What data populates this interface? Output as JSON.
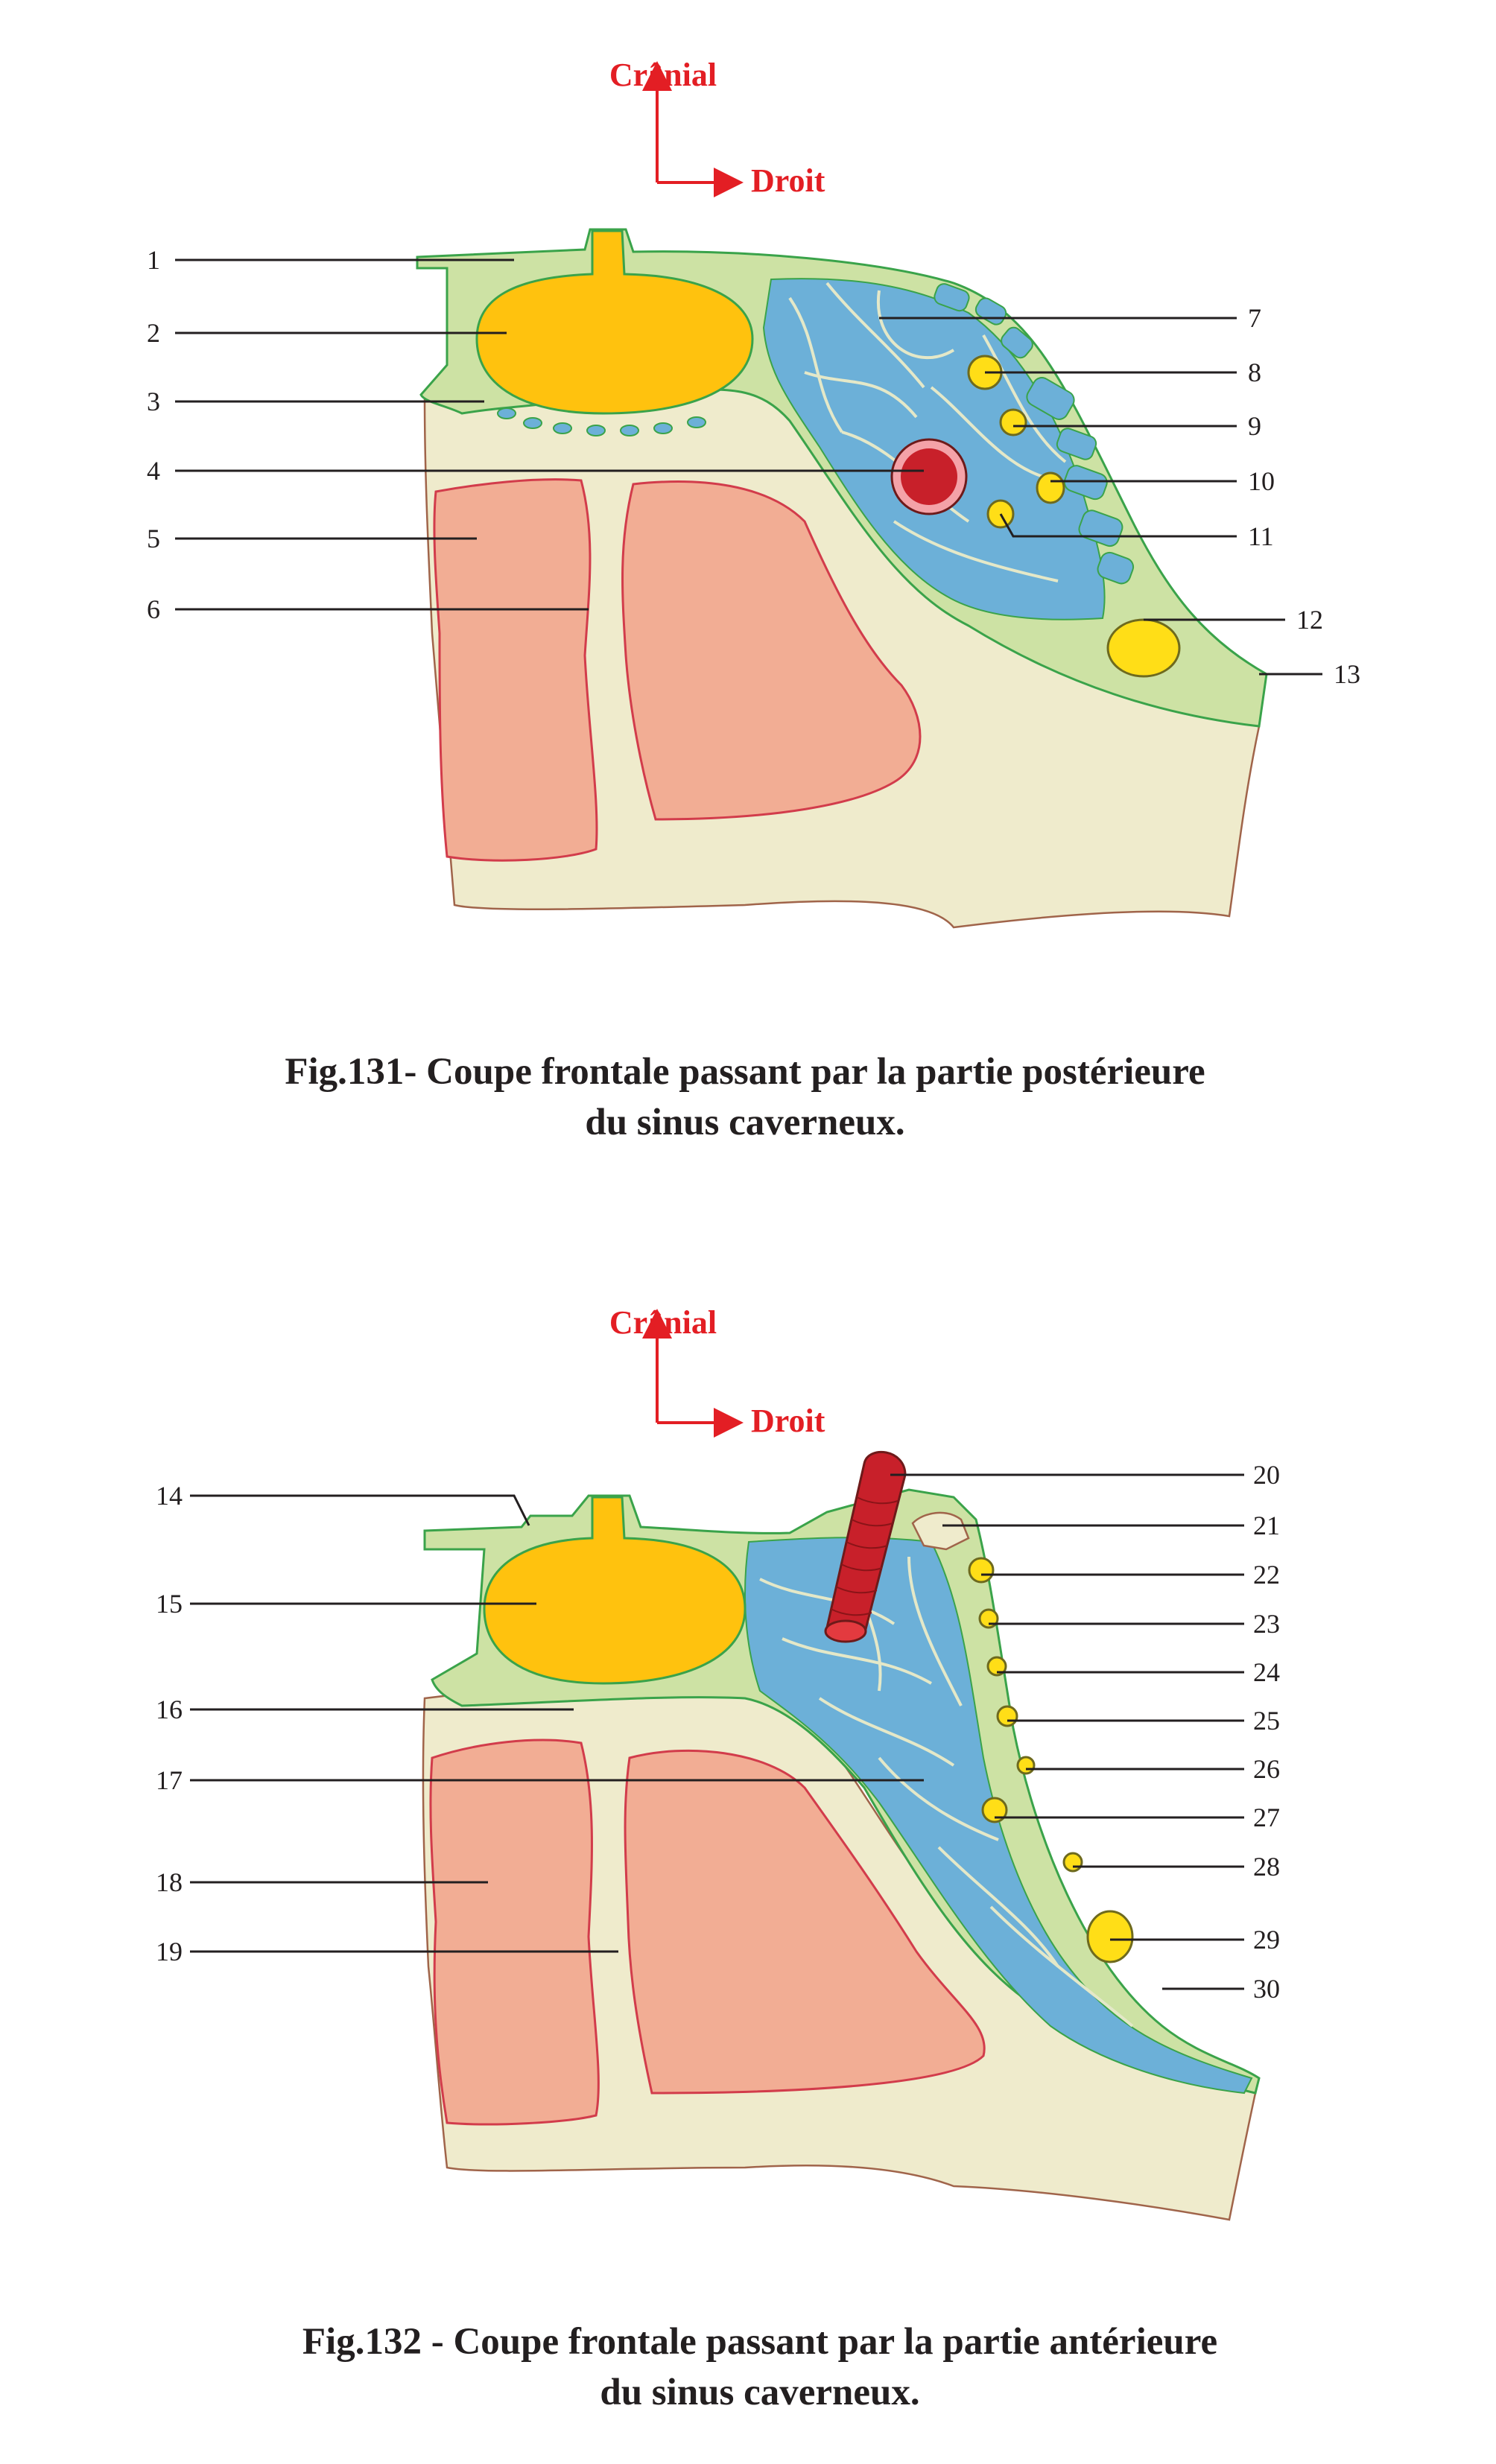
{
  "figures": [
    {
      "orientation": {
        "up": "Crânial",
        "right": "Droit"
      },
      "caption_line1": "Fig.131- Coupe frontale passant par la partie postérieure",
      "caption_line2": "du sinus caverneux.",
      "labels": [
        "1",
        "2",
        "3",
        "4",
        "5",
        "6",
        "7",
        "8",
        "9",
        "10",
        "11",
        "12",
        "13"
      ]
    },
    {
      "orientation": {
        "up": "Crânial",
        "right": "Droit"
      },
      "caption_line1": "Fig.132 - Coupe frontale passant par la partie antérieure",
      "caption_line2": "du sinus caverneux.",
      "labels": [
        "14",
        "15",
        "16",
        "17",
        "18",
        "19",
        "20",
        "21",
        "22",
        "23",
        "24",
        "25",
        "26",
        "27",
        "28",
        "29",
        "30"
      ]
    }
  ],
  "colors": {
    "bone": "#efebcc",
    "dura": "#cde2a4",
    "cavernous_sinus": "#6cb0d8",
    "pituitary": "#ffc20e",
    "sphenoid_sinus": "#f2ad94",
    "carotid_artery": "#c8202a",
    "nerves": "#ffde17",
    "orientation_text": "#e31e24"
  }
}
